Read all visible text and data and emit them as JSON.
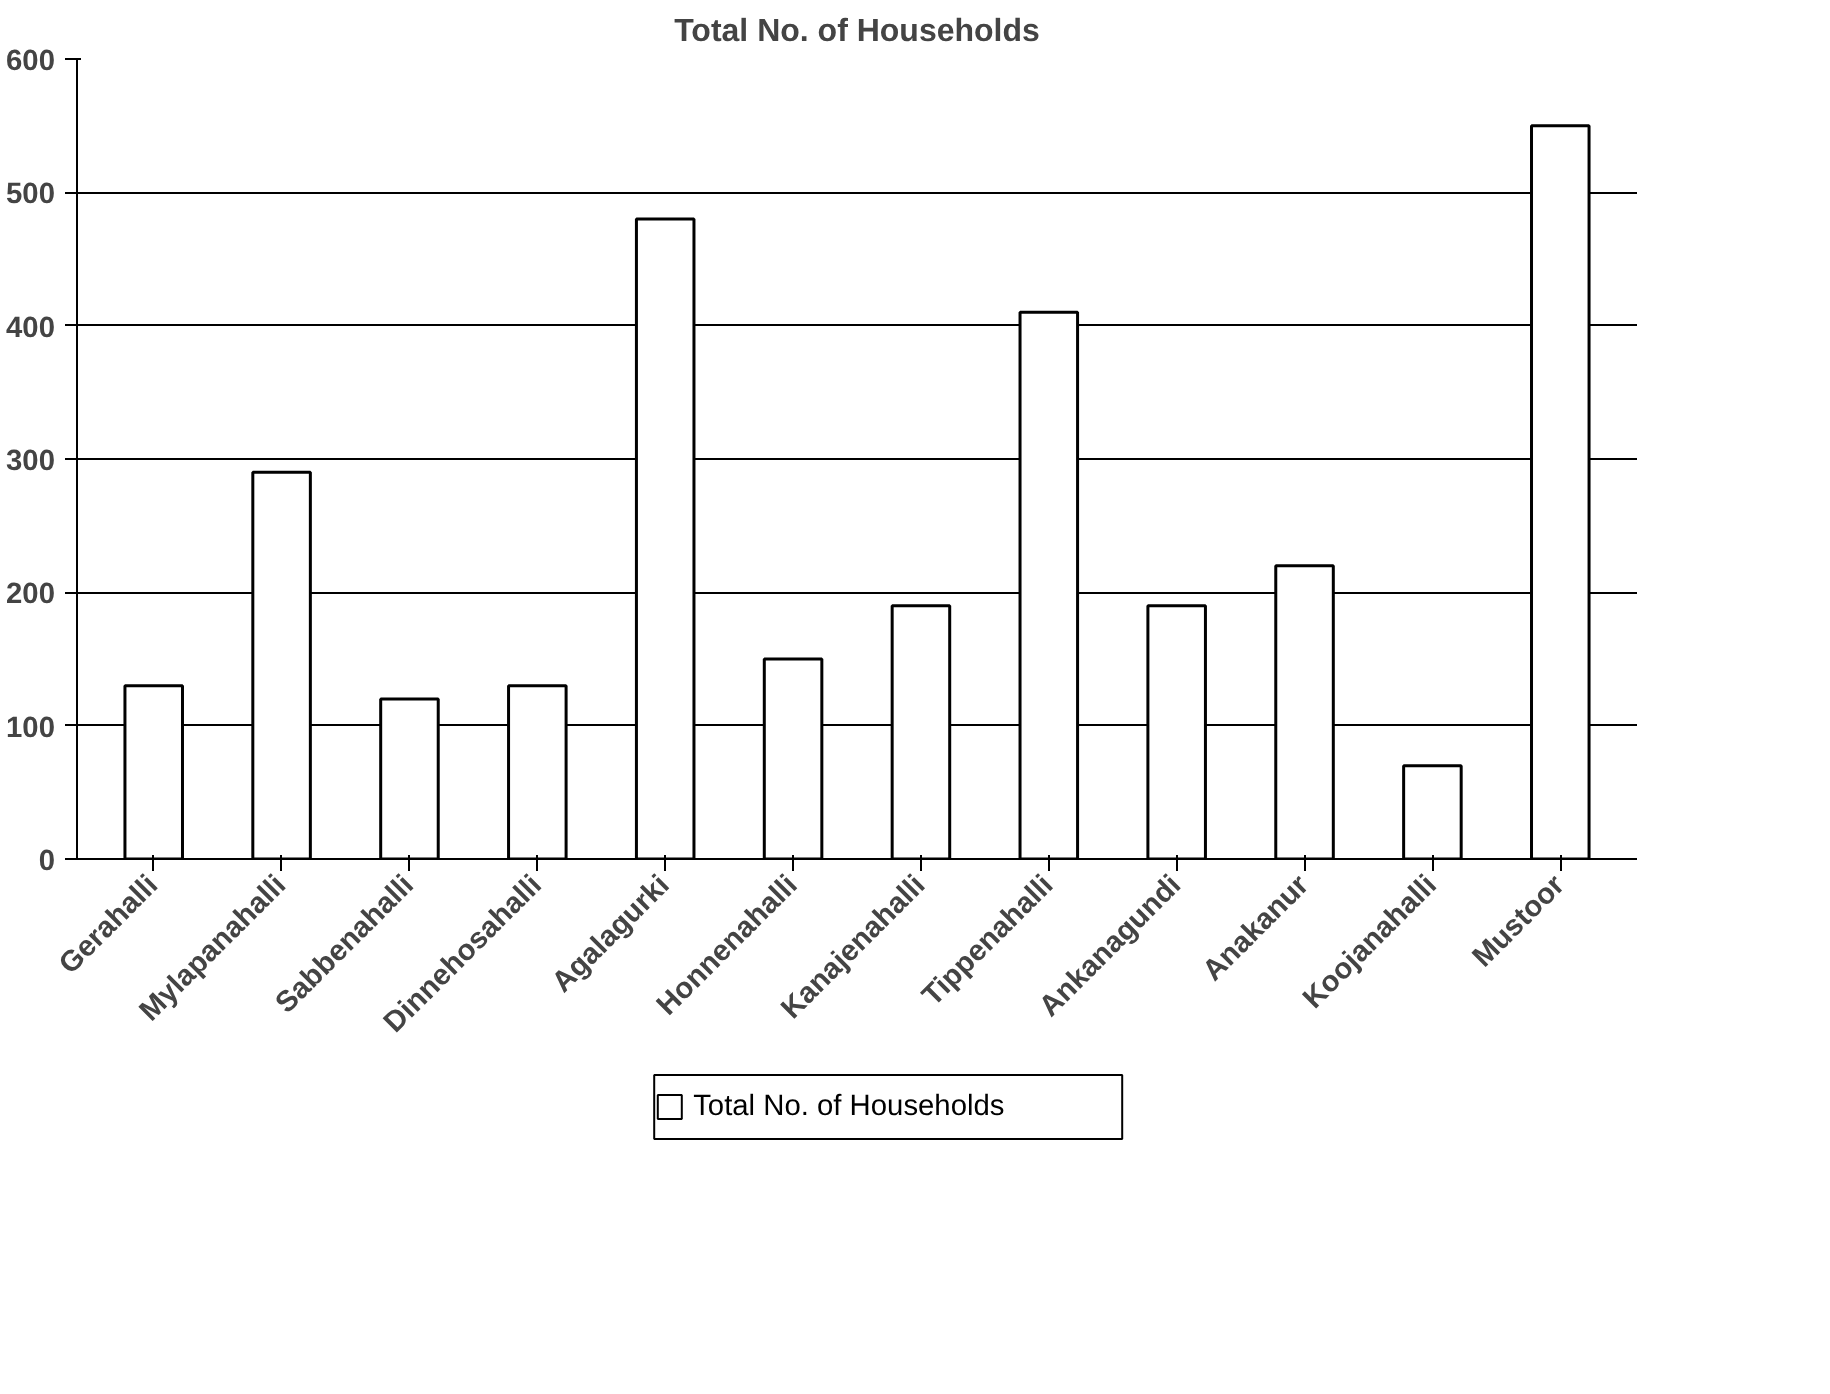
{
  "chart_data": {
    "type": "bar",
    "title": "Total No. of Households",
    "categories": [
      "Gerahalli",
      "Mylapanahalli",
      "Sabbenahalli",
      "Dinnehosahalli",
      "Agalagurki",
      "Honnenahalli",
      "Kanajenahalli",
      "Tippenahalli",
      "Ankanagundi",
      "Anakanur",
      "Koojanahalli",
      "Mustoor"
    ],
    "series": [
      {
        "name": "Total No. of Households",
        "color": "#ffffff",
        "values": [
          130,
          290,
          120,
          130,
          480,
          150,
          190,
          410,
          190,
          220,
          70,
          550
        ]
      }
    ],
    "ylim": [
      0,
      600
    ],
    "yticks": [
      0,
      100,
      200,
      300,
      400,
      500,
      600
    ],
    "grid": "y",
    "legend": "bottom"
  }
}
